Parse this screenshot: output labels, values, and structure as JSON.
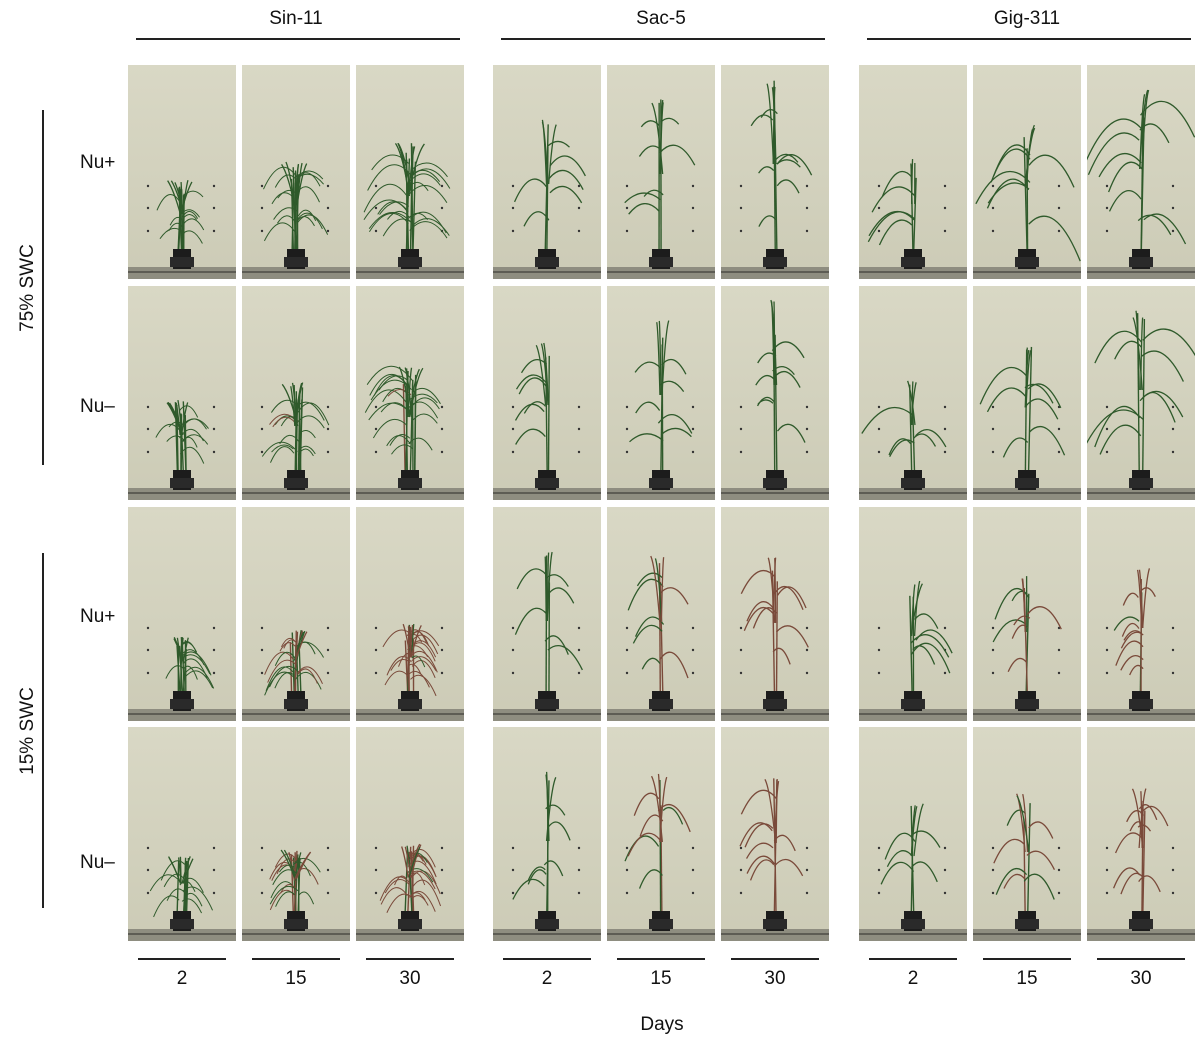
{
  "genotypes": [
    "Sin-11",
    "Sac-5",
    "Gig-311"
  ],
  "water_levels": [
    {
      "label": "75% SWC",
      "nutrients": [
        "Nu+",
        "Nu–"
      ]
    },
    {
      "label": "15% SWC",
      "nutrients": [
        "Nu+",
        "Nu–"
      ]
    }
  ],
  "days": [
    "2",
    "15",
    "30"
  ],
  "x_axis_label": "Days",
  "colors": {
    "background_panel": "#d6d5c1",
    "leaf_green": "#2f5a2b",
    "leaf_dry": "#7a4a3a",
    "pot": "#1c1c1c"
  }
}
